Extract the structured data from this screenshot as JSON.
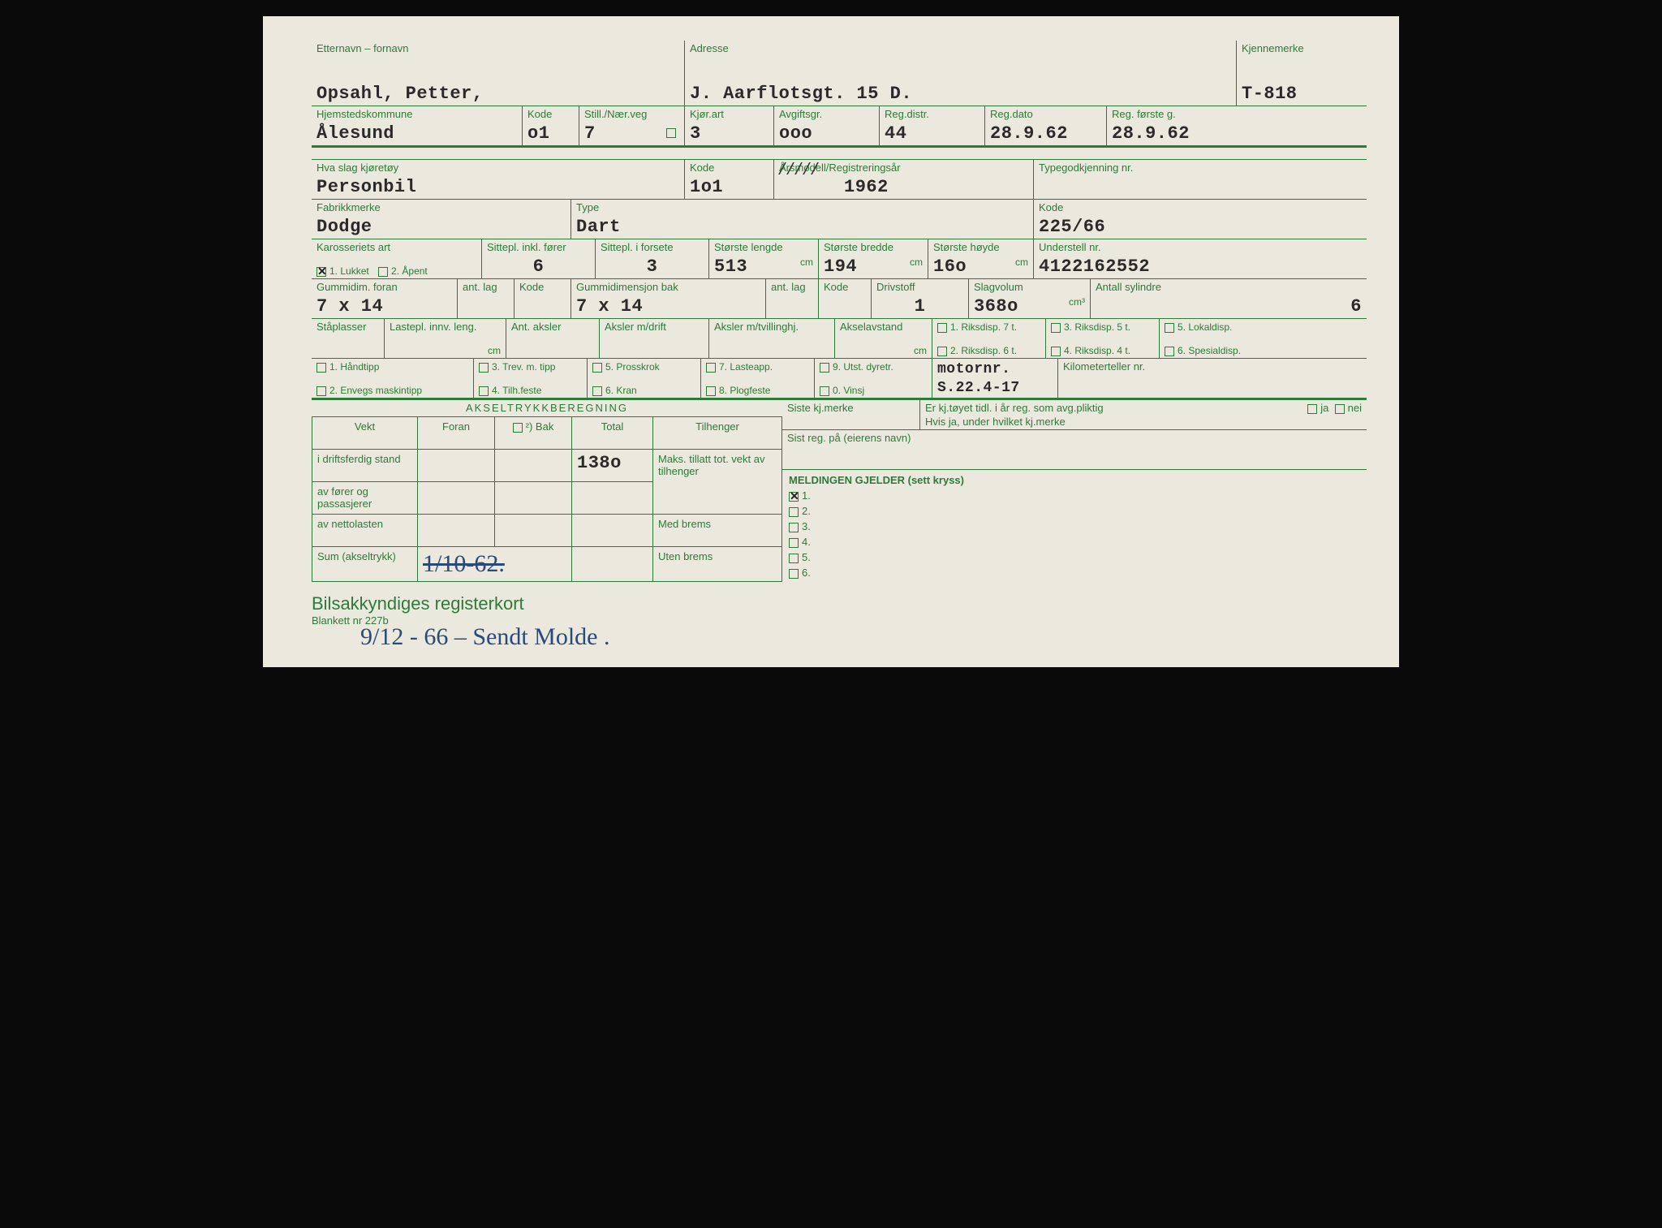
{
  "colors": {
    "form_green": "#2e7a3a",
    "paper": "#ebe8dd",
    "typed": "#2a2a2a",
    "ink_blue": "#2a4a7a",
    "frame": "#0a0a0a"
  },
  "typography": {
    "label_fontsize": 13,
    "typed_fontsize": 22,
    "title_fontsize": 22,
    "handwriting_fontsize": 30
  },
  "header": {
    "etternavn_label": "Etternavn – fornavn",
    "etternavn": "Opsahl, Petter,",
    "adresse_label": "Adresse",
    "adresse": "J. Aarflotsgt. 15 D.",
    "kjennemerke_label": "Kjennemerke",
    "kjennemerke": "T-818"
  },
  "row2": {
    "hjemsted_label": "Hjemstedskommune",
    "hjemsted": "Ålesund",
    "kode_label": "Kode",
    "kode": "o1",
    "still_label": "Still./Nær.veg",
    "still": "7",
    "kjorart_label": "Kjør.art",
    "kjorart": "3",
    "avgift_label": "Avgiftsgr.",
    "avgift": "ooo",
    "regdistr_label": "Reg.distr.",
    "regdistr": "44",
    "regdato_label": "Reg.dato",
    "regdato": "28.9.62",
    "regforste_label": "Reg. første g.",
    "regforste": "28.9.62"
  },
  "row3": {
    "hvaslag_label": "Hva slag kjøretøy",
    "hvaslag": "Personbil",
    "kode_label": "Kode",
    "kode": "1o1",
    "arsmodell_label": "Årsmodell/Registreringsår",
    "arsmodell": "1962",
    "typegodkj_label": "Typegodkjenning nr."
  },
  "row4": {
    "fabrikk_label": "Fabrikkmerke",
    "fabrikk": "Dodge",
    "type_label": "Type",
    "type": "Dart",
    "kode_label": "Kode",
    "kode": "225/66"
  },
  "row5": {
    "karosseri_label": "Karosseriets art",
    "karosseri_1": "1. Lukket",
    "karosseri_2": "2. Åpent",
    "karosseri_checked": 1,
    "sittepl_label": "Sittepl. inkl. fører",
    "sittepl": "6",
    "forsete_label": "Sittepl. i forsete",
    "forsete": "3",
    "lengde_label": "Største lengde",
    "lengde": "513",
    "bredde_label": "Største bredde",
    "bredde": "194",
    "hoyde_label": "Største høyde",
    "hoyde": "16o",
    "cm": "cm",
    "understell_label": "Understell nr.",
    "understell": "4122162552"
  },
  "row6": {
    "gummi_foran_label": "Gummidim. foran",
    "gummi_foran": "7 x 14",
    "antlag_label": "ant. lag",
    "kode_label": "Kode",
    "gummi_bak_label": "Gummidimensjon bak",
    "gummi_bak": "7 x 14",
    "drivstoff_label": "Drivstoff",
    "drivstoff": "1",
    "slagvolum_label": "Slagvolum",
    "slagvolum": "368o",
    "cm3": "cm³",
    "sylindre_label": "Antall sylindre",
    "sylindre": "6"
  },
  "row7": {
    "staplasser_label": "Ståplasser",
    "lastepl_label": "Lastepl. innv. leng.",
    "cm": "cm",
    "antaksler_label": "Ant. aksler",
    "aksler_drift_label": "Aksler m/drift",
    "aksler_tvilling_label": "Aksler m/tvillinghj.",
    "akselavstand_label": "Akselavstand",
    "riksdisp": {
      "r1": "1. Riksdisp. 7 t.",
      "r2": "2. Riksdisp. 6 t.",
      "r3": "3. Riksdisp. 5 t.",
      "r4": "4. Riksdisp. 4 t.",
      "r5": "5. Lokaldisp.",
      "r6": "6. Spesialdisp."
    }
  },
  "row8": {
    "c1": "1. Håndtipp",
    "c2": "2. Envegs maskintipp",
    "c3": "3. Trev. m. tipp",
    "c4": "4. Tilh.feste",
    "c5": "5. Prosskrok",
    "c6": "6. Kran",
    "c7": "7. Lasteapp.",
    "c8": "8. Plogfeste",
    "c9": "9. Utst. dyretr.",
    "c0": "0. Vinsj",
    "motornr_label": "motornr.",
    "motornr": "S.22.4-17",
    "km_label": "Kilometerteller nr."
  },
  "aksel_header": "AKSELTRYKKBEREGNING",
  "weight_table": {
    "cols": [
      "Vekt",
      "Foran",
      "²) Bak",
      "Total",
      "Tilhenger"
    ],
    "rows": [
      {
        "label": "i driftsferdig stand",
        "total": "138o",
        "tilhenger": "Maks. tillatt tot. vekt av tilhenger"
      },
      {
        "label": "av fører og passasjerer",
        "tilhenger": ""
      },
      {
        "label": "av nettolasten",
        "tilhenger": "Med brems"
      },
      {
        "label": "Sum (akseltrykk)",
        "foran_strike": "1/10-62.",
        "tilhenger": "Uten brems"
      }
    ]
  },
  "right_block": {
    "siste_label": "Siste kj.merke",
    "tidl_label": "Er kj.tøyet tidl. i år reg. som avg.pliktig",
    "ja": "ja",
    "nei": "nei",
    "hvis_label": "Hvis ja, under hvilket kj.merke",
    "sistreg_label": "Sist reg. på (eierens navn)",
    "melding_header": "MELDINGEN GJELDER (sett kryss)",
    "items": [
      "1.",
      "2.",
      "3.",
      "4.",
      "5.",
      "6."
    ],
    "checked_index": 0
  },
  "footer": {
    "title": "Bilsakkyndiges registerkort",
    "blankett": "Blankett nr  227b",
    "handwritten": "9/12 - 66 – Sendt Molde ."
  }
}
